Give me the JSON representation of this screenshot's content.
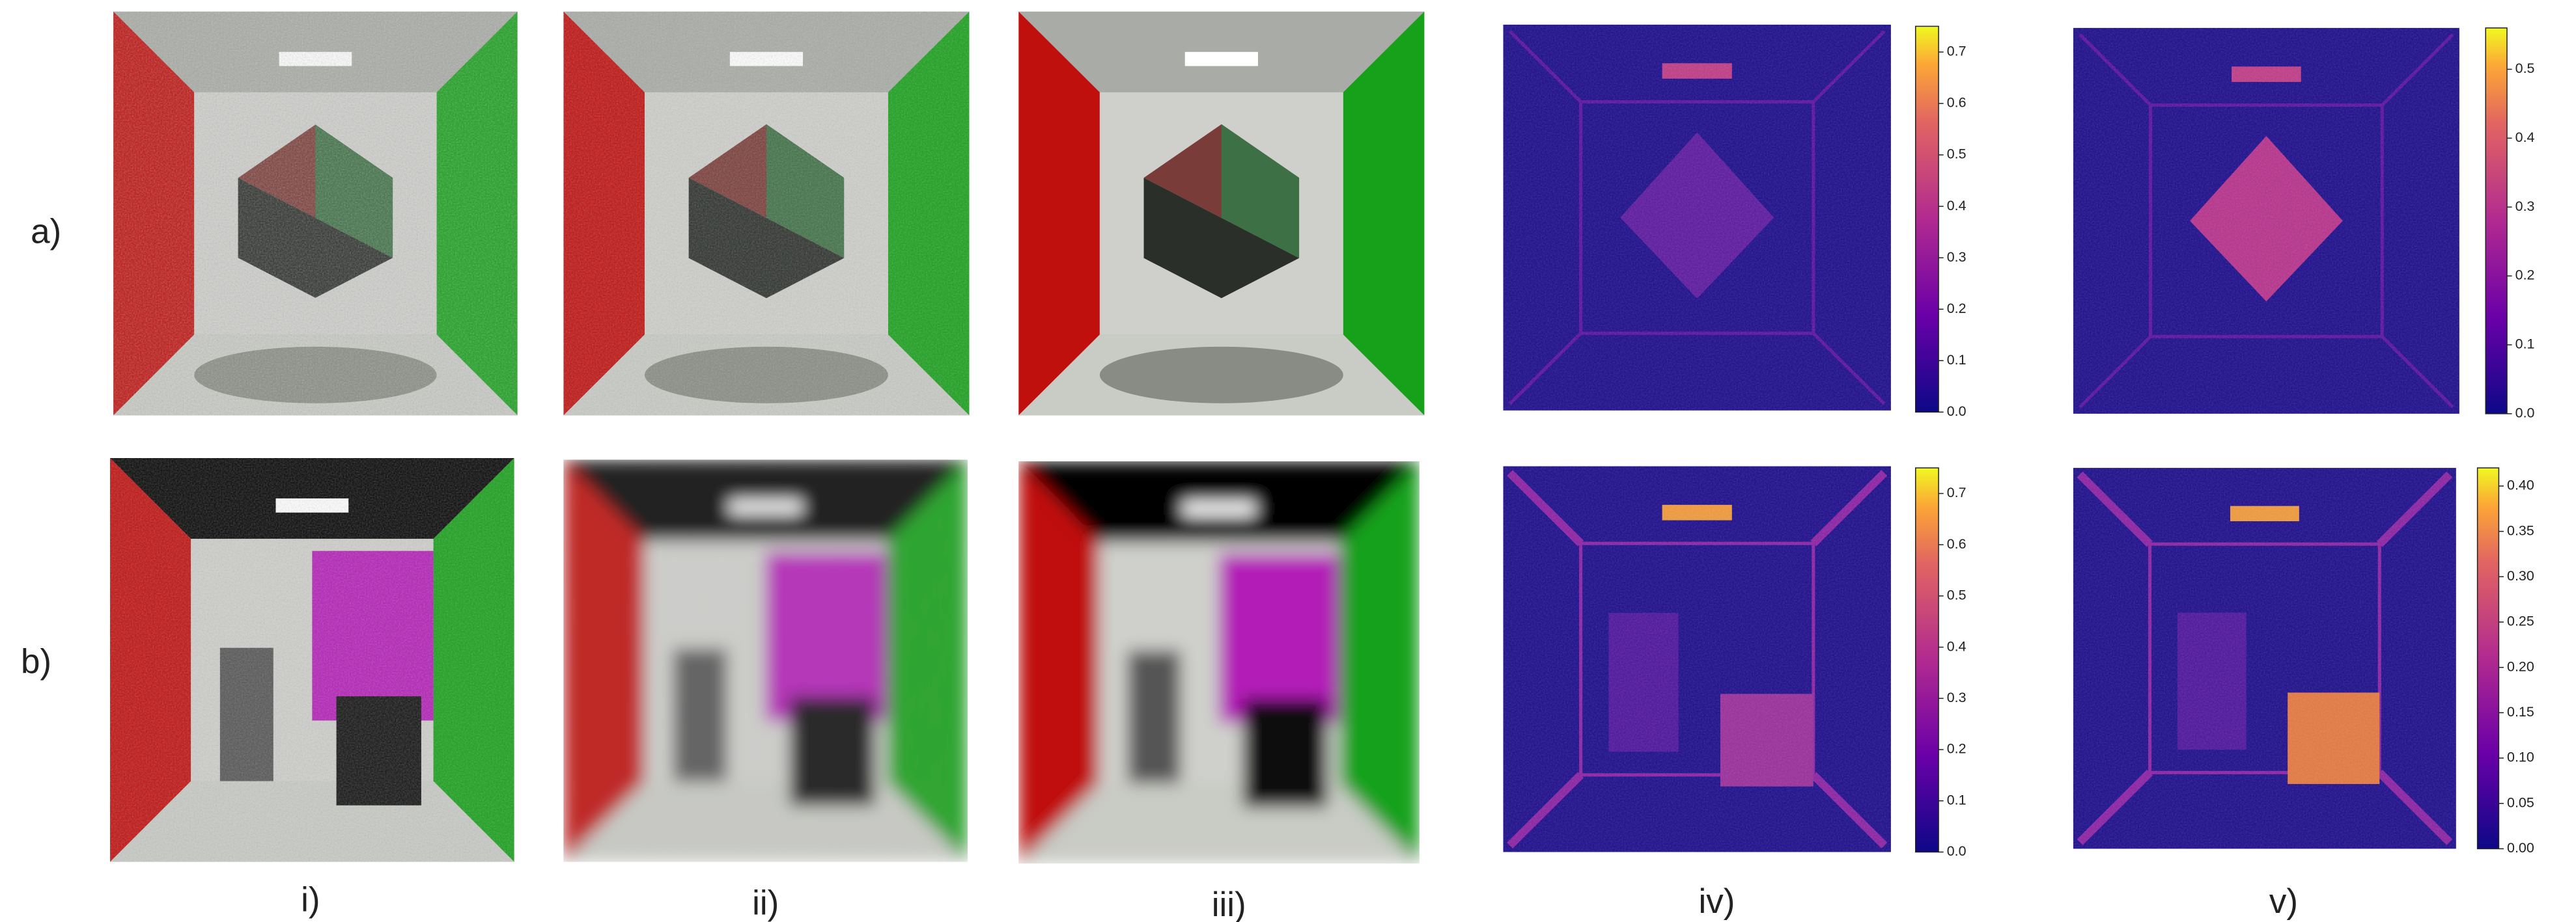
{
  "row_labels": [
    "a)",
    "b)"
  ],
  "column_labels": [
    "i)",
    "ii)",
    "iii)",
    "iv)",
    "v)"
  ],
  "colorbars": [
    {
      "lim": [
        0,
        0.75
      ],
      "ticks": [
        {
          "value": 0,
          "label": "0.0"
        },
        0.1,
        0.2,
        0.3,
        0.4,
        0.5,
        0.6,
        0.7
      ]
    },
    {
      "lim": [
        0,
        0.56
      ],
      "ticks": [
        {
          "value": 0,
          "label": "0.0"
        },
        0.1,
        0.2,
        0.3,
        0.4,
        0.5
      ]
    },
    {
      "lim": [
        0,
        0.75
      ],
      "ticks": [
        {
          "value": 0,
          "label": "0.0"
        },
        0.1,
        0.2,
        0.3,
        0.4,
        0.5,
        0.6,
        0.7
      ]
    },
    {
      "lim": [
        0,
        0.42
      ],
      "ticks": [
        {
          "value": 0,
          "label": "0.00"
        },
        0.05,
        {
          "value": 0.1,
          "label": "0.10"
        },
        0.15,
        {
          "value": 0.2,
          "label": "0.20"
        },
        0.25,
        {
          "value": 0.3,
          "label": "0.30"
        },
        0.35,
        {
          "value": 0.4,
          "label": "0.40"
        }
      ]
    }
  ]
}
